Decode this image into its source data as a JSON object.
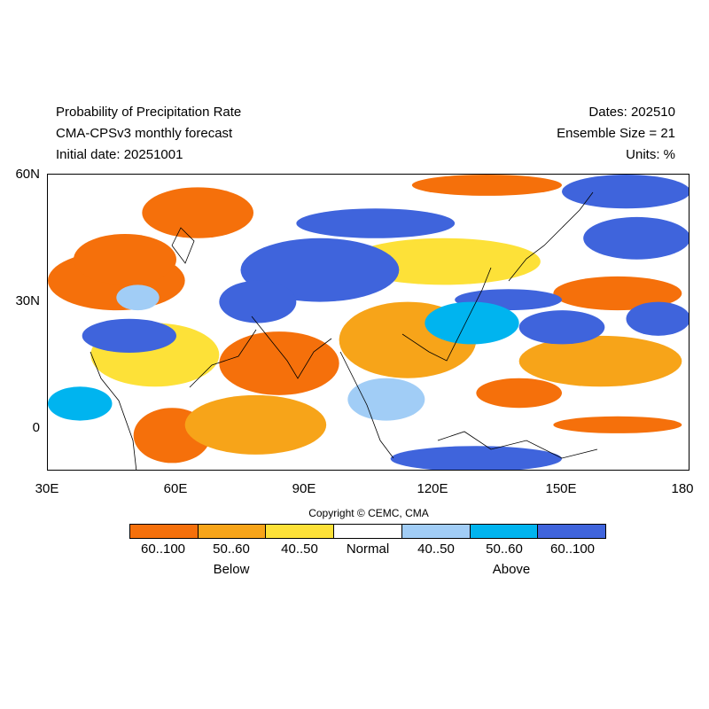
{
  "header": {
    "title": "Probability of Precipitation Rate",
    "model": "CMA-CPSv3 monthly forecast",
    "initial_date": "Initial date: 20251001",
    "dates": "Dates: 202510",
    "ensemble": "Ensemble Size = 21",
    "units": "Units: %"
  },
  "axes": {
    "lat_labels": [
      "60N",
      "30N",
      "0"
    ],
    "lon_labels": [
      "30E",
      "60E",
      "90E",
      "120E",
      "150E",
      "180"
    ]
  },
  "map": {
    "lon_range": [
      30,
      180
    ],
    "lat_range": [
      -10,
      60
    ],
    "regions": [
      {
        "category": "below_60_100",
        "lon": [
          30,
          62
        ],
        "lat": [
          28,
          42
        ]
      },
      {
        "category": "below_60_100",
        "lon": [
          52,
          78
        ],
        "lat": [
          45,
          57
        ]
      },
      {
        "category": "below_60_100",
        "lon": [
          36,
          60
        ],
        "lat": [
          34,
          46
        ]
      },
      {
        "category": "below_60_100",
        "lon": [
          70,
          98
        ],
        "lat": [
          8,
          23
        ]
      },
      {
        "category": "below_60_100",
        "lon": [
          50,
          68
        ],
        "lat": [
          -8,
          5
        ]
      },
      {
        "category": "below_60_100",
        "lon": [
          115,
          150
        ],
        "lat": [
          55,
          60
        ]
      },
      {
        "category": "below_60_100",
        "lon": [
          148,
          178
        ],
        "lat": [
          28,
          36
        ]
      },
      {
        "category": "below_60_100",
        "lon": [
          148,
          178
        ],
        "lat": [
          -1,
          3
        ]
      },
      {
        "category": "below_60_100",
        "lon": [
          130,
          150
        ],
        "lat": [
          5,
          12
        ]
      },
      {
        "category": "below_50_60",
        "lon": [
          98,
          130
        ],
        "lat": [
          12,
          30
        ]
      },
      {
        "category": "below_50_60",
        "lon": [
          62,
          95
        ],
        "lat": [
          -6,
          8
        ]
      },
      {
        "category": "below_50_60",
        "lon": [
          140,
          178
        ],
        "lat": [
          10,
          22
        ]
      },
      {
        "category": "below_40_50",
        "lon": [
          40,
          70
        ],
        "lat": [
          10,
          25
        ]
      },
      {
        "category": "below_40_50",
        "lon": [
          100,
          145
        ],
        "lat": [
          34,
          45
        ]
      },
      {
        "category": "above_60_100",
        "lon": [
          75,
          112
        ],
        "lat": [
          30,
          45
        ]
      },
      {
        "category": "above_60_100",
        "lon": [
          88,
          125
        ],
        "lat": [
          45,
          52
        ]
      },
      {
        "category": "above_60_100",
        "lon": [
          70,
          88
        ],
        "lat": [
          25,
          35
        ]
      },
      {
        "category": "above_60_100",
        "lon": [
          38,
          60
        ],
        "lat": [
          18,
          26
        ]
      },
      {
        "category": "above_60_100",
        "lon": [
          150,
          180
        ],
        "lat": [
          52,
          60
        ]
      },
      {
        "category": "above_60_100",
        "lon": [
          155,
          180
        ],
        "lat": [
          40,
          50
        ]
      },
      {
        "category": "above_60_100",
        "lon": [
          140,
          160
        ],
        "lat": [
          20,
          28
        ]
      },
      {
        "category": "above_60_100",
        "lon": [
          110,
          150
        ],
        "lat": [
          -10,
          -4
        ]
      },
      {
        "category": "above_60_100",
        "lon": [
          165,
          180
        ],
        "lat": [
          22,
          30
        ]
      },
      {
        "category": "above_60_100",
        "lon": [
          125,
          150
        ],
        "lat": [
          28,
          33
        ]
      },
      {
        "category": "above_50_60",
        "lon": [
          118,
          140
        ],
        "lat": [
          20,
          30
        ]
      },
      {
        "category": "above_50_60",
        "lon": [
          30,
          45
        ],
        "lat": [
          2,
          10
        ]
      },
      {
        "category": "above_40_50",
        "lon": [
          46,
          56
        ],
        "lat": [
          28,
          34
        ]
      },
      {
        "category": "above_40_50",
        "lon": [
          100,
          118
        ],
        "lat": [
          2,
          12
        ]
      }
    ]
  },
  "copyright": "Copyright © CEMC, CMA",
  "legend": {
    "items": [
      {
        "label": "60..100",
        "color": "#f5700b",
        "category": "below_60_100"
      },
      {
        "label": "50..60",
        "color": "#f7a419",
        "category": "below_50_60"
      },
      {
        "label": "40..50",
        "color": "#fde138",
        "category": "below_40_50"
      },
      {
        "label": "Normal",
        "color": "#ffffff",
        "category": "normal"
      },
      {
        "label": "40..50",
        "color": "#a1cdf6",
        "category": "above_40_50"
      },
      {
        "label": "50..60",
        "color": "#00b4ef",
        "category": "above_50_60"
      },
      {
        "label": "60..100",
        "color": "#3f64dc",
        "category": "above_60_100"
      }
    ],
    "below_label": "Below",
    "above_label": "Above"
  }
}
